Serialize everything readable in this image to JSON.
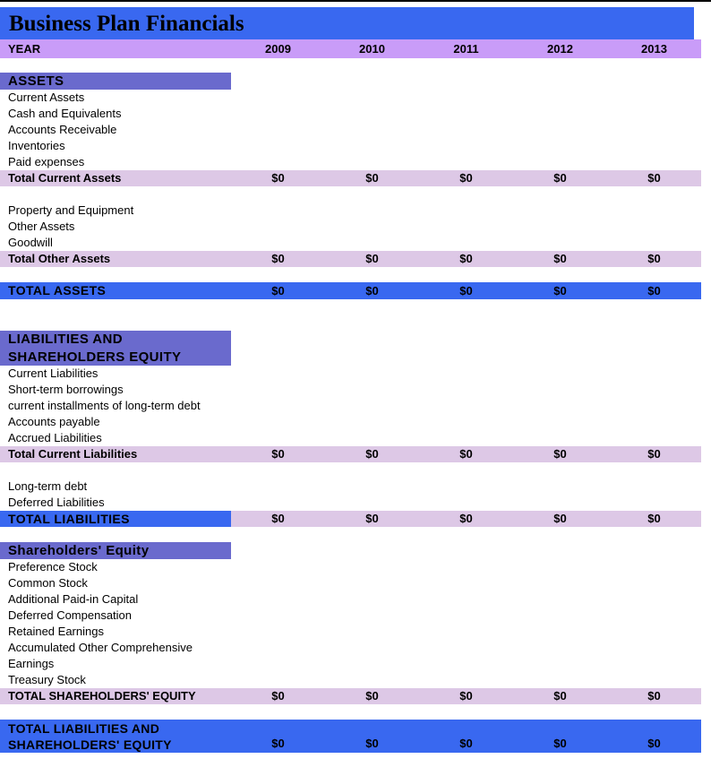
{
  "page": {
    "title": "Business Plan Financials"
  },
  "colors": {
    "title_bar_blue": "#3968F0",
    "section_header_purple": "#6A6ACD",
    "year_row_purple": "#C99CF8",
    "total_row_light": "#DDC8E6",
    "text_black": "#000000"
  },
  "year_header": {
    "label": "YEAR",
    "years": [
      "2009",
      "2010",
      "2011",
      "2012",
      "2013"
    ]
  },
  "rows": [
    {
      "type": "section_header",
      "label": "ASSETS"
    },
    {
      "type": "item",
      "label": "Current Assets"
    },
    {
      "type": "item",
      "label": "Cash and Equivalents"
    },
    {
      "type": "item",
      "label": "Accounts Receivable"
    },
    {
      "type": "item",
      "label": "Inventories"
    },
    {
      "type": "item",
      "label": "Paid expenses"
    },
    {
      "type": "total_light",
      "label": "Total Current Assets",
      "values": [
        "$0",
        "$0",
        "$0",
        "$0",
        "$0"
      ]
    },
    {
      "type": "spacer"
    },
    {
      "type": "item",
      "label": "Property and Equipment"
    },
    {
      "type": "item",
      "label": "Other Assets"
    },
    {
      "type": "item",
      "label": "Goodwill"
    },
    {
      "type": "total_light",
      "label": "Total Other Assets",
      "values": [
        "$0",
        "$0",
        "$0",
        "$0",
        "$0"
      ]
    },
    {
      "type": "spacer_small"
    },
    {
      "type": "total_blue",
      "label": "TOTAL ASSETS",
      "values": [
        "$0",
        "$0",
        "$0",
        "$0",
        "$0"
      ]
    },
    {
      "type": "spacer_large"
    },
    {
      "type": "section_header_tall",
      "label": "LIABILITIES AND SHAREHOLDERS EQUITY"
    },
    {
      "type": "item",
      "label": "Current Liabilities"
    },
    {
      "type": "item",
      "label": "Short-term borrowings"
    },
    {
      "type": "item",
      "label": "current installments of long-term debt"
    },
    {
      "type": "item",
      "label": "Accounts payable"
    },
    {
      "type": "item",
      "label": "Accrued Liabilities"
    },
    {
      "type": "total_light",
      "label": "Total Current Liabilities",
      "values": [
        "$0",
        "$0",
        "$0",
        "$0",
        "$0"
      ]
    },
    {
      "type": "spacer"
    },
    {
      "type": "item",
      "label": "Long-term debt"
    },
    {
      "type": "item",
      "label": "Deferred Liabilities"
    },
    {
      "type": "total_mixed",
      "label": "TOTAL LIABILITIES",
      "values": [
        "$0",
        "$0",
        "$0",
        "$0",
        "$0"
      ]
    },
    {
      "type": "spacer_small"
    },
    {
      "type": "section_header",
      "label": "Shareholders' Equity"
    },
    {
      "type": "item",
      "label": "Preference Stock"
    },
    {
      "type": "item",
      "label": "Common Stock"
    },
    {
      "type": "item",
      "label": "Additional Paid-in Capital"
    },
    {
      "type": "item",
      "label": "Deferred Compensation"
    },
    {
      "type": "item",
      "label": "Retained Earnings"
    },
    {
      "type": "item_wrap",
      "label": "Accumulated Other Comprehensive Earnings"
    },
    {
      "type": "item",
      "label": "Treasury Stock"
    },
    {
      "type": "total_light",
      "label": "TOTAL SHAREHOLDERS' EQUITY",
      "values": [
        "$0",
        "$0",
        "$0",
        "$0",
        "$0"
      ]
    },
    {
      "type": "spacer_small"
    },
    {
      "type": "total_blue_tall",
      "label": "TOTAL LIABILITIES AND SHAREHOLDERS' EQUITY",
      "values": [
        "$0",
        "$0",
        "$0",
        "$0",
        "$0"
      ]
    }
  ]
}
